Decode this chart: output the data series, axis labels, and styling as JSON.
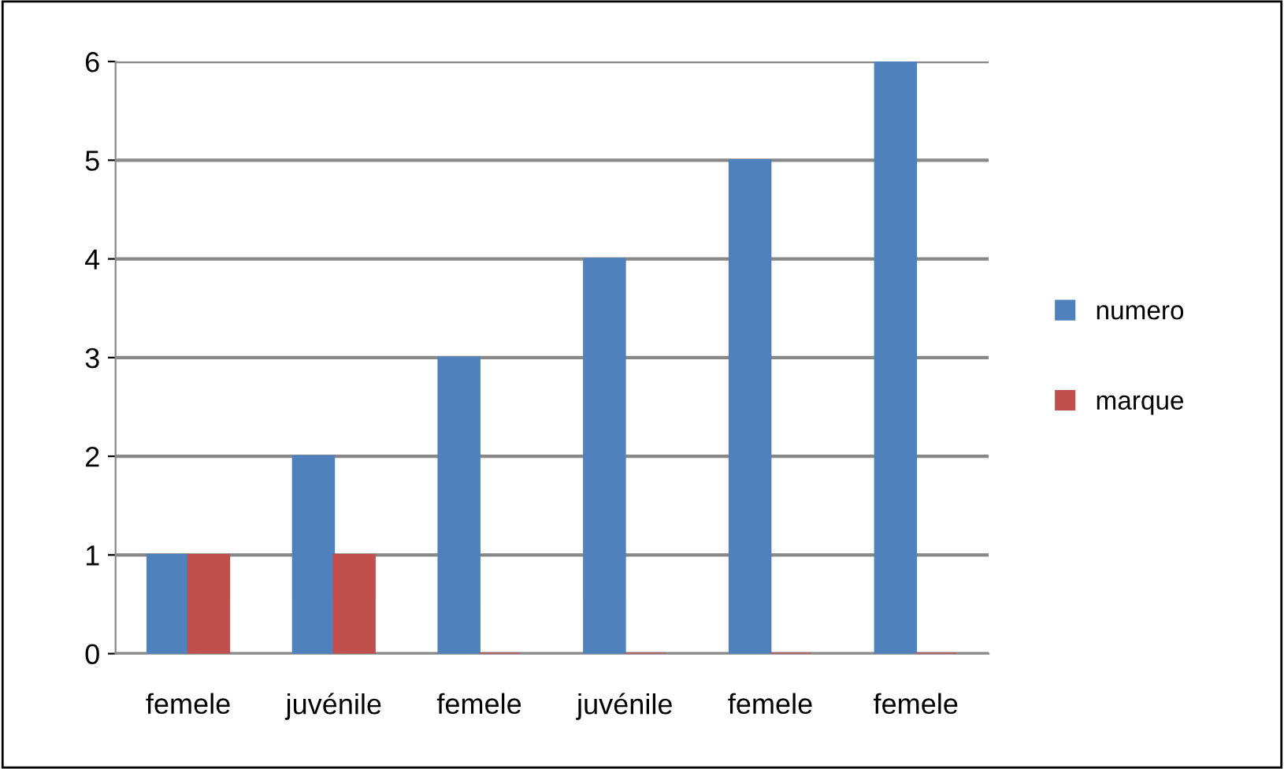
{
  "chart_data": {
    "type": "bar",
    "categories": [
      "femele",
      "juvénile",
      "femele",
      "juvénile",
      "femele",
      "femele"
    ],
    "series": [
      {
        "name": "numero",
        "color": "#4f81bd",
        "values": [
          1,
          2,
          3,
          4,
          5,
          6
        ]
      },
      {
        "name": "marque",
        "color": "#c0504d",
        "values": [
          1,
          1,
          0,
          0,
          0,
          0
        ]
      }
    ],
    "ylim": [
      0,
      6
    ],
    "yticks": [
      0,
      1,
      2,
      3,
      4,
      5,
      6
    ],
    "grid": "y",
    "legend": "right"
  }
}
